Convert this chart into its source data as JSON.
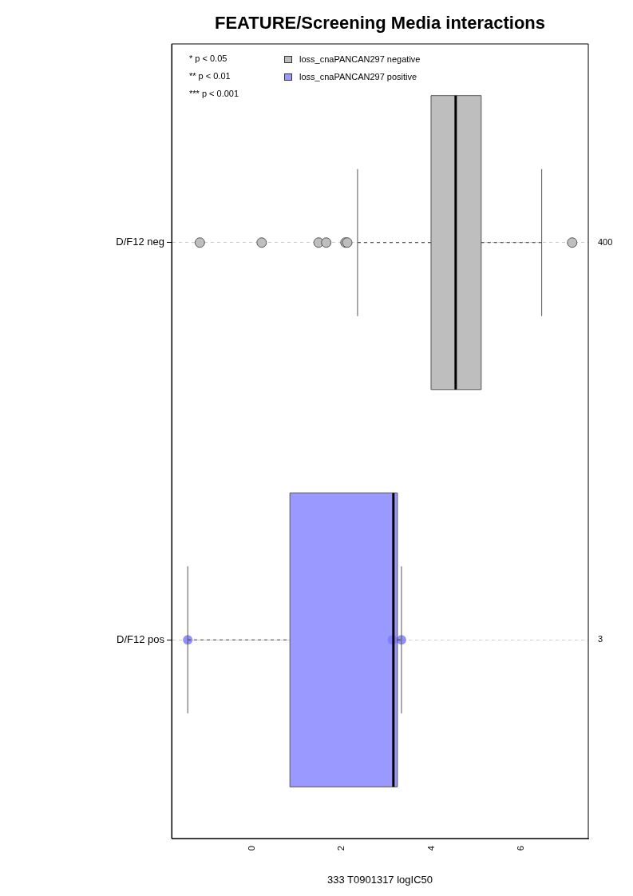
{
  "chart_data": {
    "type": "box",
    "title": "FEATURE/Screening Media interactions",
    "xlabel": "333 T0901317 logIC50",
    "orientation": "horizontal",
    "categories": [
      "D/F12 neg",
      "D/F12 pos"
    ],
    "y2_categories": [
      "400",
      "3"
    ],
    "xlim": [
      -1.8,
      7.5
    ],
    "xticks": [
      0,
      2,
      4,
      6
    ],
    "grid": "y",
    "legend": "top left",
    "marker": "circle",
    "annotations": [
      "* p < 0.05",
      "** p < 0.01",
      "*** p < 0.001"
    ],
    "series": [
      {
        "name": "loss_cnaPANCAN297 negative",
        "color": "#bebebe",
        "boxes": [
          {
            "low": 2.35,
            "q1": 3.99,
            "median": 4.54,
            "q3": 5.11,
            "high": 6.46,
            "outliers": [
              -1.17,
              0.21,
              1.48,
              1.65,
              2.08,
              2.12,
              7.14
            ]
          },
          null
        ]
      },
      {
        "name": "loss_cnaPANCAN297 positive",
        "color": "#9999ff",
        "boxes": [
          null,
          {
            "low": -1.44,
            "q1": 0.84,
            "median": 3.15,
            "q3": 3.24,
            "high": 3.33
          }
        ]
      },
      {
        "type": "scatter",
        "color": "#7777ff",
        "x": [
          "D/F12 pos",
          "D/F12 pos",
          "D/F12 pos"
        ],
        "values": [
          -1.44,
          3.13,
          3.33
        ]
      }
    ]
  }
}
